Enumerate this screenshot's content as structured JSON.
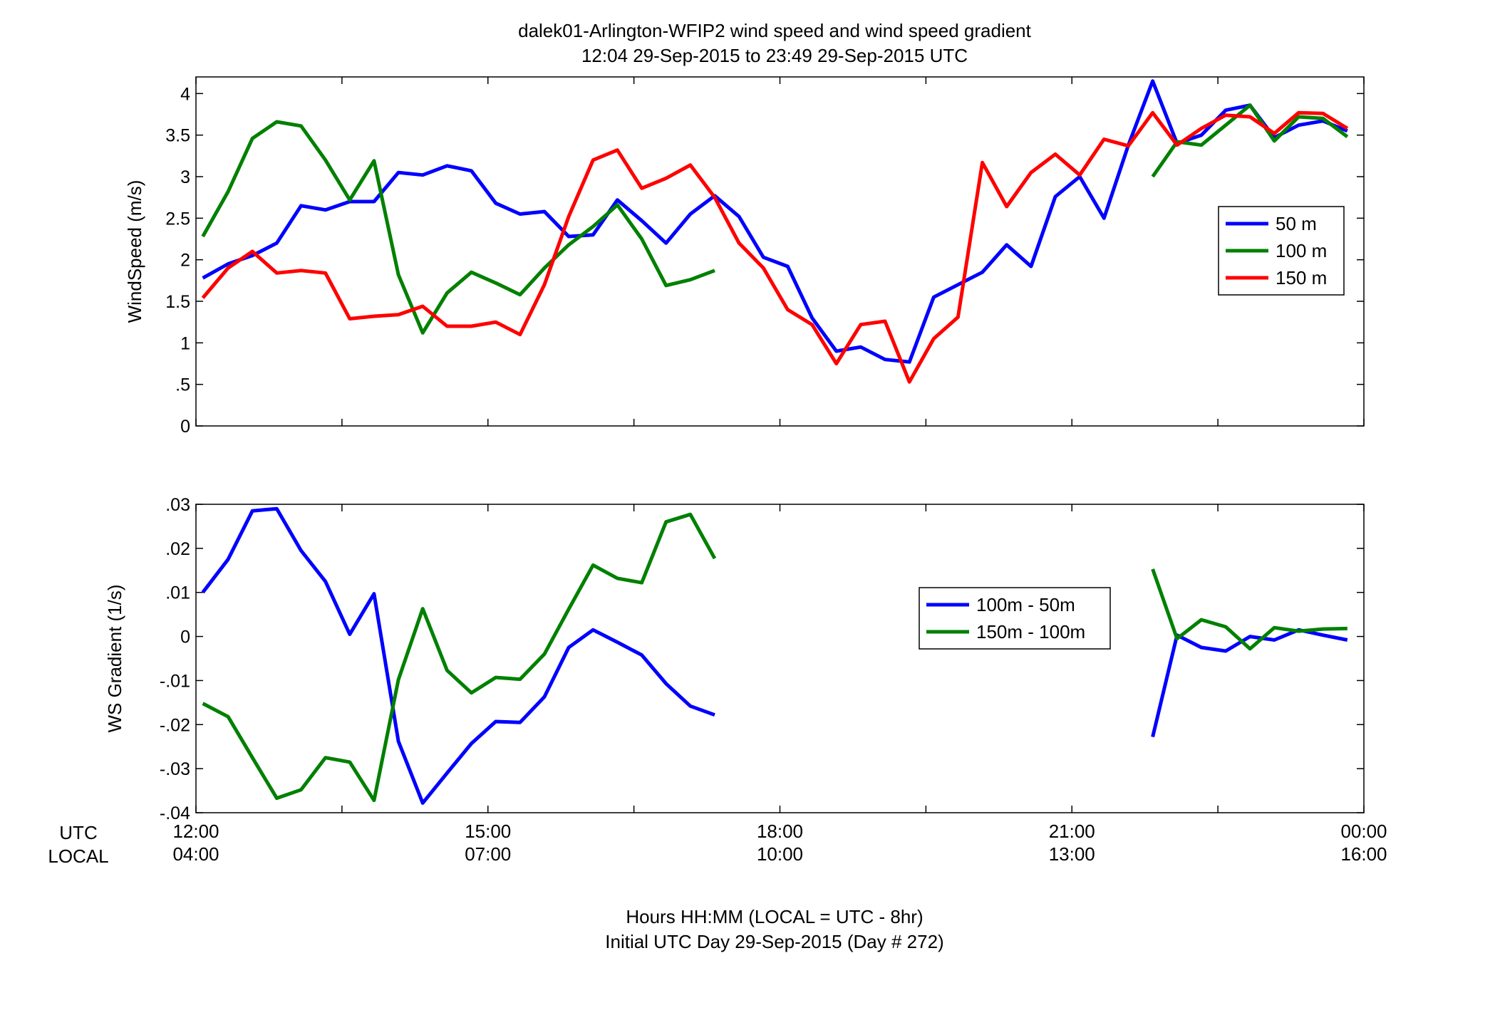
{
  "title": {
    "line1": "dalek01-Arlington-WFIP2  wind speed and wind speed gradient",
    "line2": "12:04 29-Sep-2015 to 23:49 29-Sep-2015  UTC"
  },
  "xaxis": {
    "row_label_utc": "UTC",
    "row_label_local": "LOCAL",
    "ticks": [
      {
        "hour": 12,
        "utc": "12:00",
        "local": "04:00"
      },
      {
        "hour": 15,
        "utc": "15:00",
        "local": "07:00"
      },
      {
        "hour": 18,
        "utc": "18:00",
        "local": "10:00"
      },
      {
        "hour": 21,
        "utc": "21:00",
        "local": "13:00"
      },
      {
        "hour": 24,
        "utc": "00:00",
        "local": "16:00"
      }
    ],
    "label_line1": "Hours HH:MM  (LOCAL = UTC - 8hr)",
    "label_line2": "Initial UTC Day 29-Sep-2015 (Day # 272)"
  },
  "chart_data": [
    {
      "type": "line",
      "ylabel": "WindSpeed (m/s)",
      "xlim": [
        12,
        24
      ],
      "ylim": [
        0,
        4.2
      ],
      "yticks": [
        0,
        0.5,
        1,
        1.5,
        2,
        2.5,
        3,
        3.5,
        4
      ],
      "legend_position": "right",
      "x": [
        12.07,
        12.33,
        12.58,
        12.83,
        13.08,
        13.33,
        13.58,
        13.83,
        14.08,
        14.33,
        14.58,
        14.83,
        15.08,
        15.33,
        15.58,
        15.83,
        16.08,
        16.33,
        16.58,
        16.83,
        17.08,
        17.33,
        17.58,
        17.83,
        18.08,
        18.33,
        18.58,
        18.83,
        19.08,
        19.33,
        19.58,
        19.83,
        20.08,
        20.33,
        20.58,
        20.83,
        21.08,
        21.33,
        21.58,
        21.83,
        22.08,
        22.33,
        22.58,
        22.83,
        23.08,
        23.33,
        23.58,
        23.83
      ],
      "series": [
        {
          "name": "50 m",
          "color": "#0000ff",
          "values": [
            1.78,
            1.95,
            2.05,
            2.2,
            2.65,
            2.6,
            2.7,
            2.7,
            3.05,
            3.02,
            3.13,
            3.07,
            2.68,
            2.55,
            2.58,
            2.28,
            2.3,
            2.72,
            2.47,
            2.2,
            2.55,
            2.77,
            2.52,
            2.03,
            1.92,
            1.3,
            0.9,
            0.95,
            0.8,
            0.77,
            1.55,
            1.7,
            1.85,
            2.18,
            1.92,
            2.76,
            3.0,
            2.5,
            3.38,
            4.15,
            3.4,
            3.5,
            3.8,
            3.86,
            3.47,
            3.62,
            3.67,
            3.55
          ]
        },
        {
          "name": "100 m",
          "color": "#008000",
          "values": [
            2.28,
            2.82,
            3.46,
            3.66,
            3.61,
            3.2,
            2.72,
            3.19,
            1.82,
            1.12,
            1.6,
            1.85,
            1.72,
            1.58,
            1.9,
            2.18,
            2.4,
            2.66,
            2.25,
            1.69,
            1.76,
            1.87,
            null,
            null,
            null,
            null,
            null,
            null,
            null,
            null,
            null,
            null,
            null,
            null,
            null,
            null,
            null,
            null,
            null,
            3.0,
            3.42,
            3.38,
            3.62,
            3.86,
            3.43,
            3.72,
            3.7,
            3.48
          ]
        },
        {
          "name": "150 m",
          "color": "#ff0000",
          "values": [
            1.54,
            1.9,
            2.1,
            1.84,
            1.87,
            1.84,
            1.29,
            1.32,
            1.34,
            1.44,
            1.2,
            1.2,
            1.25,
            1.1,
            1.7,
            2.52,
            3.2,
            3.32,
            2.86,
            2.98,
            3.14,
            2.75,
            2.2,
            1.9,
            1.4,
            1.22,
            0.75,
            1.22,
            1.26,
            0.53,
            1.05,
            1.31,
            3.17,
            2.64,
            3.05,
            3.27,
            3.02,
            3.45,
            3.37,
            3.77,
            3.38,
            3.58,
            3.74,
            3.72,
            3.52,
            3.77,
            3.76,
            3.58
          ]
        }
      ]
    },
    {
      "type": "line",
      "ylabel": "WS Gradient (1/s)",
      "xlim": [
        12,
        24
      ],
      "ylim": [
        -0.04,
        0.03
      ],
      "yticks": [
        -0.04,
        -0.03,
        -0.02,
        -0.01,
        0,
        0.01,
        0.02,
        0.03
      ],
      "legend_position": "right",
      "x": [
        12.07,
        12.33,
        12.58,
        12.83,
        13.08,
        13.33,
        13.58,
        13.83,
        14.08,
        14.33,
        14.58,
        14.83,
        15.08,
        15.33,
        15.58,
        15.83,
        16.08,
        16.33,
        16.58,
        16.83,
        17.08,
        17.33,
        17.58,
        17.83,
        18.08,
        18.33,
        18.58,
        18.83,
        19.08,
        19.33,
        19.58,
        19.83,
        20.08,
        20.33,
        20.58,
        20.83,
        21.08,
        21.33,
        21.58,
        21.83,
        22.08,
        22.33,
        22.58,
        22.83,
        23.08,
        23.33,
        23.58,
        23.83
      ],
      "series": [
        {
          "name": "100m - 50m",
          "color": "#0000ff",
          "values": [
            0.01,
            0.0175,
            0.0285,
            0.029,
            0.0195,
            0.0125,
            0.0005,
            0.0097,
            -0.0238,
            -0.0378,
            -0.031,
            -0.0243,
            -0.0193,
            -0.0195,
            -0.0137,
            -0.0025,
            0.0015,
            -0.0013,
            -0.0042,
            -0.0107,
            -0.0158,
            -0.0178,
            null,
            null,
            null,
            null,
            null,
            null,
            null,
            null,
            null,
            null,
            null,
            null,
            null,
            null,
            null,
            null,
            null,
            -0.0228,
            0.0003,
            -0.0025,
            -0.0033,
            0.0,
            -0.0008,
            0.0015,
            0.0003,
            -0.0008
          ]
        },
        {
          "name": "150m - 100m",
          "color": "#008000",
          "values": [
            -0.0152,
            -0.0182,
            -0.0275,
            -0.0367,
            -0.0348,
            -0.0275,
            -0.0285,
            -0.0372,
            -0.0098,
            0.0063,
            -0.0077,
            -0.0128,
            -0.0093,
            -0.0097,
            -0.004,
            0.0062,
            0.0162,
            0.0132,
            0.0122,
            0.026,
            0.0277,
            0.0177,
            null,
            null,
            null,
            null,
            null,
            null,
            null,
            null,
            null,
            null,
            null,
            null,
            null,
            null,
            null,
            null,
            null,
            0.0153,
            -0.0005,
            0.0038,
            0.0022,
            -0.0028,
            0.002,
            0.0012,
            0.0017,
            0.0018
          ]
        }
      ]
    }
  ]
}
